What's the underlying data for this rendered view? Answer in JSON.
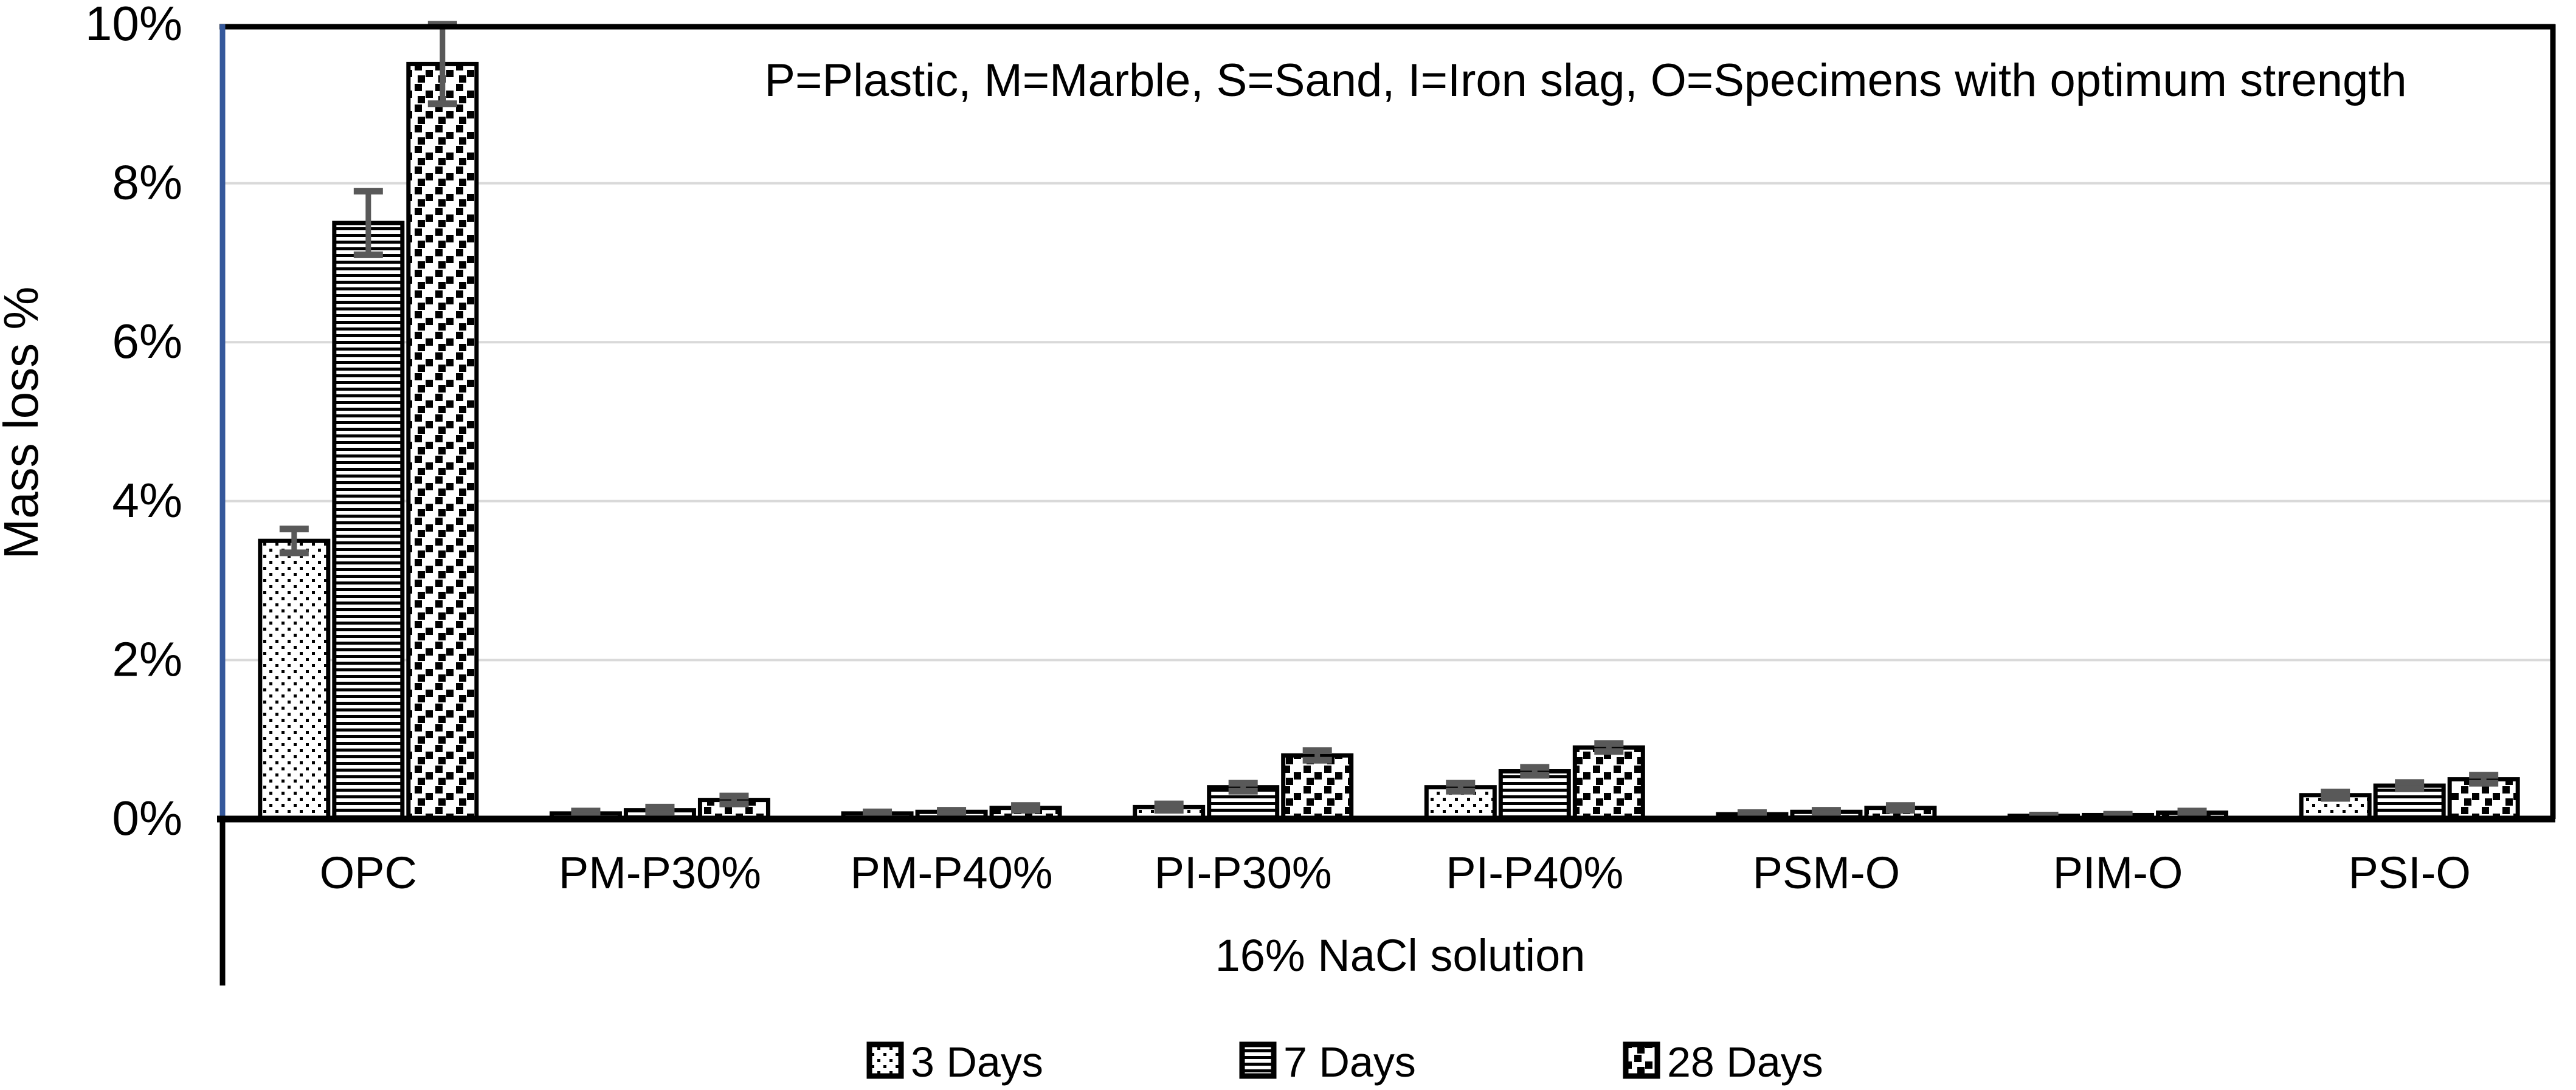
{
  "chart_data": {
    "type": "bar",
    "title": "",
    "annotation": "P=Plastic, M=Marble, S=Sand, I=Iron slag, O=Specimens with optimum strength",
    "xlabel": "16% NaCl solution",
    "ylabel": "Mass loss %",
    "ylim": [
      0,
      10
    ],
    "ytick_step": 2,
    "ytick_labels": [
      "0%",
      "2%",
      "4%",
      "6%",
      "8%",
      "10%"
    ],
    "grid": true,
    "legend_position": "bottom",
    "categories": [
      "OPC",
      "PM-P30%",
      "PM-P40%",
      "PI-P30%",
      "PI-P40%",
      "PSM-O",
      "PIM-O",
      "PSI-O"
    ],
    "series": [
      {
        "name": "3 Days",
        "pattern": "small-dots",
        "values": [
          3.5,
          0.07,
          0.07,
          0.15,
          0.4,
          0.06,
          0.04,
          0.3
        ],
        "errors": [
          0.15,
          0.03,
          0.02,
          0.04,
          0.05,
          0.02,
          0.01,
          0.04
        ]
      },
      {
        "name": "7 Days",
        "pattern": "horizontal-lines",
        "values": [
          7.5,
          0.11,
          0.09,
          0.4,
          0.6,
          0.09,
          0.05,
          0.42
        ],
        "errors": [
          0.4,
          0.04,
          0.02,
          0.05,
          0.05,
          0.02,
          0.01,
          0.04
        ]
      },
      {
        "name": "28 Days",
        "pattern": "large-dots",
        "values": [
          9.5,
          0.24,
          0.14,
          0.8,
          0.9,
          0.14,
          0.08,
          0.5
        ],
        "errors": [
          0.5,
          0.05,
          0.03,
          0.06,
          0.05,
          0.03,
          0.02,
          0.05
        ]
      }
    ],
    "colors": {
      "background": "#FFFFFF",
      "bar_fill": "#FFFFFF",
      "bar_stroke": "#000000",
      "error_bar": "#595959",
      "y_axis_line": "#35589B",
      "axis_black": "#000000",
      "gridline": "#D9D9D9",
      "text": "#000000"
    }
  }
}
